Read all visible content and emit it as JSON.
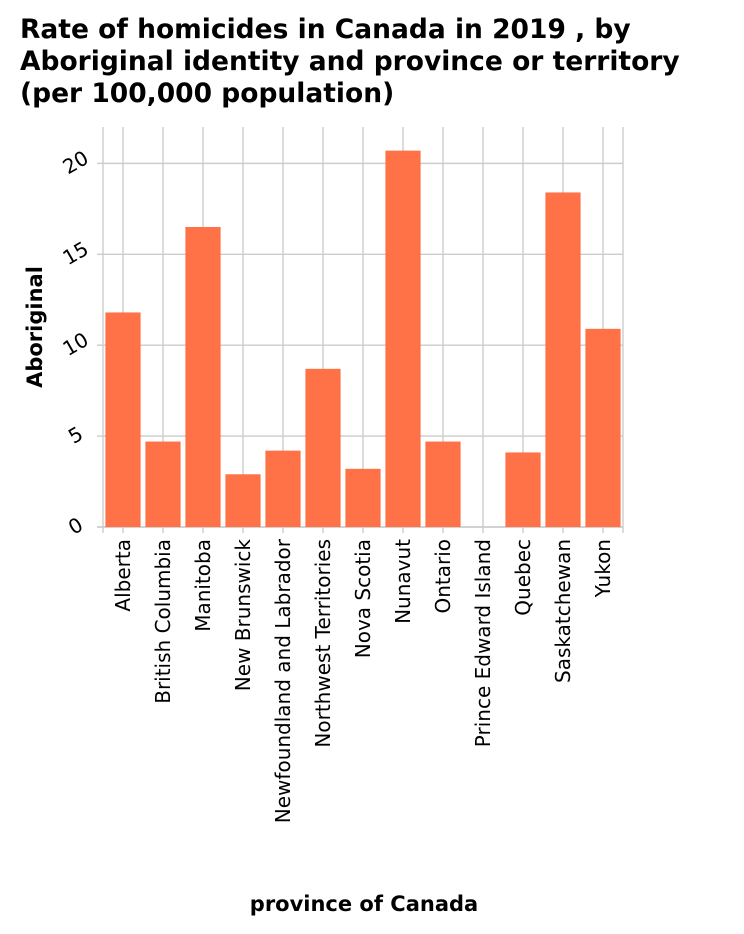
{
  "chart_data": {
    "type": "bar",
    "title_lines": [
      "Rate of homicides in Canada in 2019 , by",
      "Aboriginal identity and province or territory",
      "(per 100,000 population)"
    ],
    "xlabel": "province of Canada",
    "ylabel": "Aboriginal",
    "categories": [
      "Alberta",
      "British Columbia",
      "Manitoba",
      "New Brunswick",
      "Newfoundland and Labrador",
      "Northwest Territories",
      "Nova Scotia",
      "Nunavut",
      "Ontario",
      "Prince Edward Island",
      "Quebec",
      "Saskatchewan",
      "Yukon"
    ],
    "values": [
      11.8,
      4.7,
      16.5,
      2.9,
      4.2,
      8.7,
      3.2,
      20.7,
      4.7,
      0,
      4.1,
      18.4,
      10.9
    ],
    "ylim": [
      0,
      22
    ],
    "yticks": [
      0,
      5,
      10,
      15,
      20
    ],
    "grid": true,
    "bar_color": "#ff7247",
    "grid_color": "#cccccc"
  }
}
